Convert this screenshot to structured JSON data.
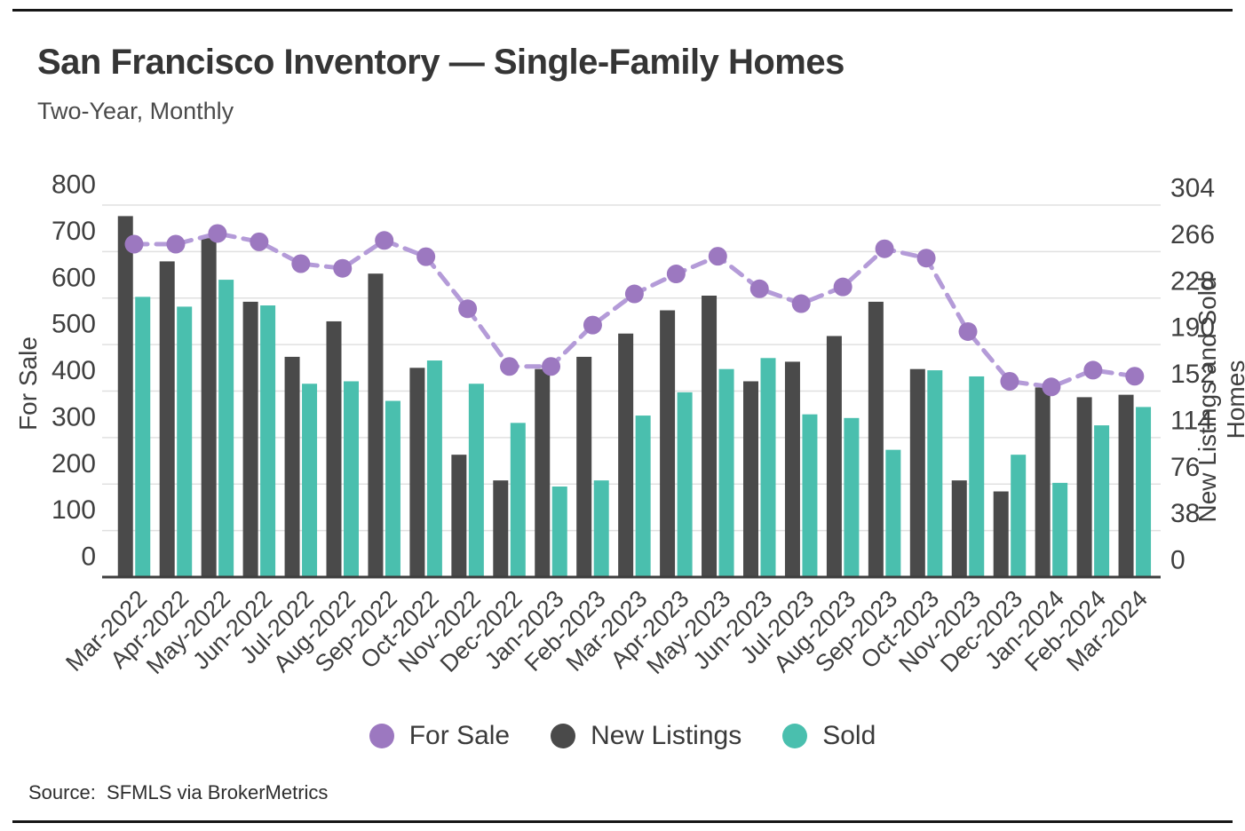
{
  "page": {
    "title": "San Francisco Inventory — Single-Family Homes",
    "subtitle": "Two-Year, Monthly",
    "source": "Source:  SFMLS via BrokerMetrics"
  },
  "legend": [
    {
      "label": "For Sale",
      "color": "#9c78c0"
    },
    {
      "label": "New Listings",
      "color": "#4a4a4a"
    },
    {
      "label": "Sold",
      "color": "#4abfae"
    }
  ],
  "colors": {
    "for_sale_marker": "#9c78c0",
    "for_sale_line": "#b49bd8",
    "new_listings_bar": "#4a4a4a",
    "sold_bar": "#4abfae",
    "gridline": "#e0e0e0",
    "axis_line": "#3f3f3f",
    "tick_text": "#3f3f3f"
  },
  "chart_data": {
    "type": "bar",
    "subtype": "grouped-bars-with-line-overlay",
    "title": "San Francisco Inventory — Single-Family Homes",
    "subtitle": "Two-Year, Monthly",
    "grid": "horizontal",
    "legend_position": "bottom",
    "categories": [
      "Mar-2022",
      "Apr-2022",
      "May-2022",
      "Jun-2022",
      "Jul-2022",
      "Aug-2022",
      "Sep-2022",
      "Oct-2022",
      "Nov-2022",
      "Dec-2022",
      "Jan-2023",
      "Feb-2023",
      "Mar-2023",
      "Apr-2023",
      "May-2023",
      "Jun-2023",
      "Jul-2023",
      "Aug-2023",
      "Sep-2023",
      "Oct-2023",
      "Nov-2023",
      "Dec-2023",
      "Jan-2024",
      "Feb-2024",
      "Mar-2024"
    ],
    "series": [
      {
        "name": "For Sale",
        "type": "line",
        "style": "dashed-with-round-markers",
        "axis": "left",
        "values": [
          716,
          716,
          739,
          721,
          674,
          664,
          724,
          689,
          577,
          453,
          453,
          542,
          609,
          652,
          690,
          620,
          588,
          624,
          706,
          686,
          528,
          421,
          409,
          445,
          432
        ]
      },
      {
        "name": "New Listings",
        "type": "bar",
        "axis": "right",
        "values": [
          295,
          258,
          277,
          225,
          180,
          209,
          248,
          171,
          100,
          79,
          170,
          180,
          199,
          218,
          230,
          160,
          176,
          197,
          225,
          170,
          79,
          70,
          155,
          147,
          149
        ]
      },
      {
        "name": "Sold",
        "type": "bar",
        "axis": "right",
        "values": [
          229,
          221,
          243,
          222,
          158,
          160,
          144,
          177,
          158,
          126,
          74,
          79,
          132,
          151,
          170,
          179,
          133,
          130,
          104,
          169,
          164,
          100,
          77,
          124,
          139
        ]
      }
    ],
    "left_axis": {
      "label": "For Sale",
      "min": 0,
      "max": 800,
      "ticks": [
        0,
        100,
        200,
        300,
        400,
        500,
        600,
        700,
        800
      ]
    },
    "right_axis": {
      "label": "New Listings and Sold Homes",
      "min": 0,
      "max": 304,
      "ticks": [
        0,
        38,
        76,
        114,
        152,
        190,
        228,
        266,
        304
      ]
    }
  }
}
